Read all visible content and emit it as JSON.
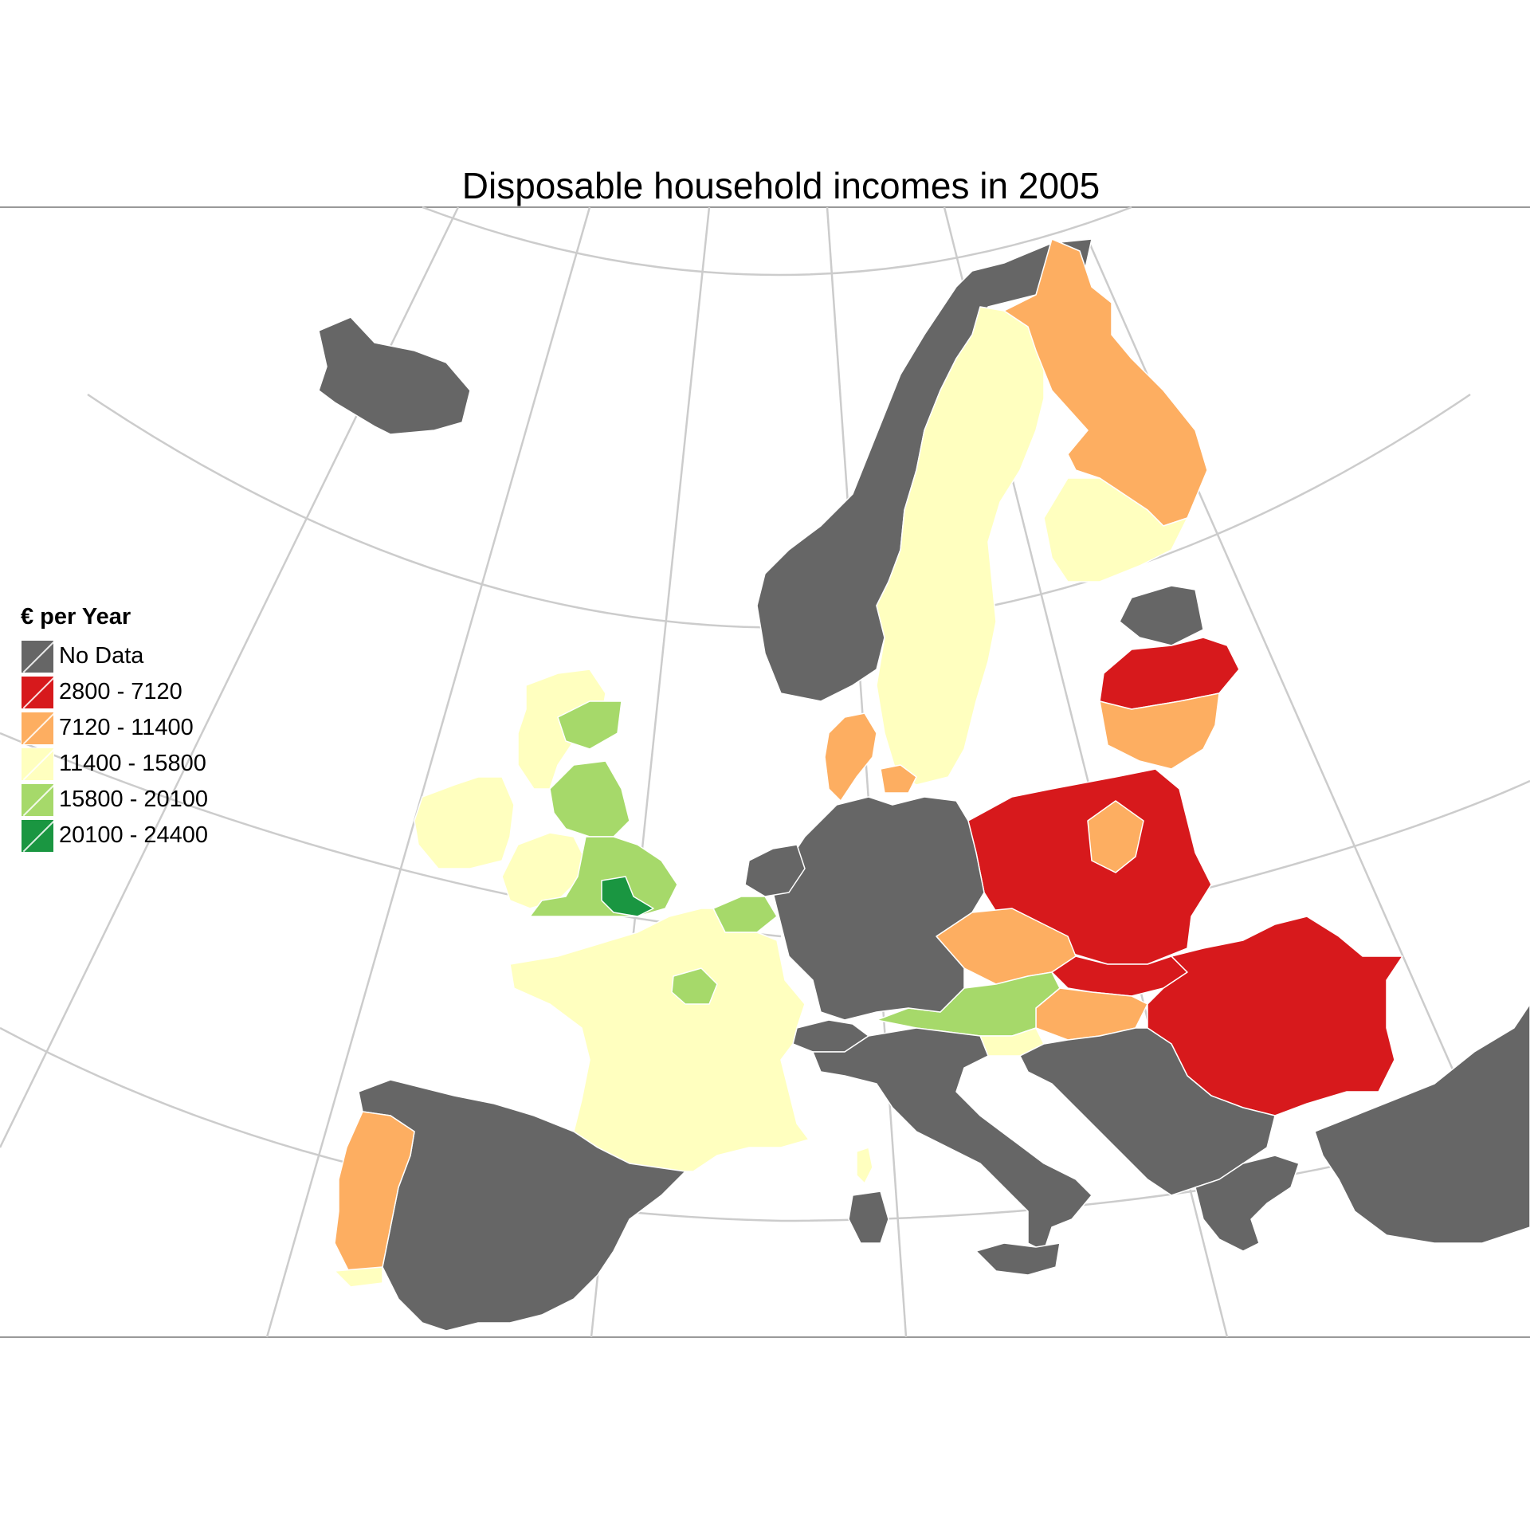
{
  "title": "Disposable household incomes in  2005",
  "legend": {
    "title": "€ per Year",
    "items": [
      {
        "label": "No Data",
        "color": "#666666"
      },
      {
        "label": "2800 - 7120",
        "color": "#d7191c"
      },
      {
        "label": "7120 - 11400",
        "color": "#fdae61"
      },
      {
        "label": "11400 - 15800",
        "color": "#ffffbf"
      },
      {
        "label": "15800 - 20100",
        "color": "#a6d96a"
      },
      {
        "label": "20100 - 24400",
        "color": "#1a9641"
      }
    ]
  },
  "map": {
    "type": "choropleth",
    "graticule_color": "#cccccc",
    "regions": [
      {
        "name": "Iceland",
        "class": "No Data"
      },
      {
        "name": "Norway",
        "class": "No Data"
      },
      {
        "name": "Sweden",
        "class": "11400 - 15800"
      },
      {
        "name": "Finland North",
        "class": "7120 - 11400"
      },
      {
        "name": "Finland South",
        "class": "11400 - 15800"
      },
      {
        "name": "Estonia",
        "class": "No Data"
      },
      {
        "name": "Latvia",
        "class": "2800 - 7120"
      },
      {
        "name": "Lithuania",
        "class": "7120 - 11400"
      },
      {
        "name": "Poland",
        "class": "2800 - 7120"
      },
      {
        "name": "Poland Central",
        "class": "7120 - 11400"
      },
      {
        "name": "Romania",
        "class": "2800 - 7120"
      },
      {
        "name": "Hungary",
        "class": "7120 - 11400"
      },
      {
        "name": "Slovakia",
        "class": "2800 - 7120"
      },
      {
        "name": "Czech Republic",
        "class": "7120 - 11400"
      },
      {
        "name": "Austria",
        "class": "15800 - 20100"
      },
      {
        "name": "Slovenia",
        "class": "11400 - 15800"
      },
      {
        "name": "Germany",
        "class": "No Data"
      },
      {
        "name": "Denmark",
        "class": "7120 - 11400"
      },
      {
        "name": "Netherlands",
        "class": "No Data"
      },
      {
        "name": "Belgium",
        "class": "15800 - 20100"
      },
      {
        "name": "France",
        "class": "11400 - 15800"
      },
      {
        "name": "Ile-de-France",
        "class": "15800 - 20100"
      },
      {
        "name": "Corsica",
        "class": "11400 - 15800"
      },
      {
        "name": "Ireland",
        "class": "11400 - 15800"
      },
      {
        "name": "Scotland",
        "class": "11400 - 15800"
      },
      {
        "name": "Scotland East",
        "class": "15800 - 20100"
      },
      {
        "name": "England North",
        "class": "15800 - 20100"
      },
      {
        "name": "England Wales West",
        "class": "11400 - 15800"
      },
      {
        "name": "England South",
        "class": "15800 - 20100"
      },
      {
        "name": "London",
        "class": "20100 - 24400"
      },
      {
        "name": "Spain",
        "class": "No Data"
      },
      {
        "name": "Portugal",
        "class": "7120 - 11400"
      },
      {
        "name": "Portugal South",
        "class": "11400 - 15800"
      },
      {
        "name": "Italy",
        "class": "No Data"
      },
      {
        "name": "Switzerland",
        "class": "No Data"
      },
      {
        "name": "Balkans",
        "class": "No Data"
      },
      {
        "name": "Greece",
        "class": "No Data"
      },
      {
        "name": "Turkey",
        "class": "No Data"
      },
      {
        "name": "Sardinia",
        "class": "No Data"
      },
      {
        "name": "Sicily",
        "class": "No Data"
      }
    ]
  }
}
